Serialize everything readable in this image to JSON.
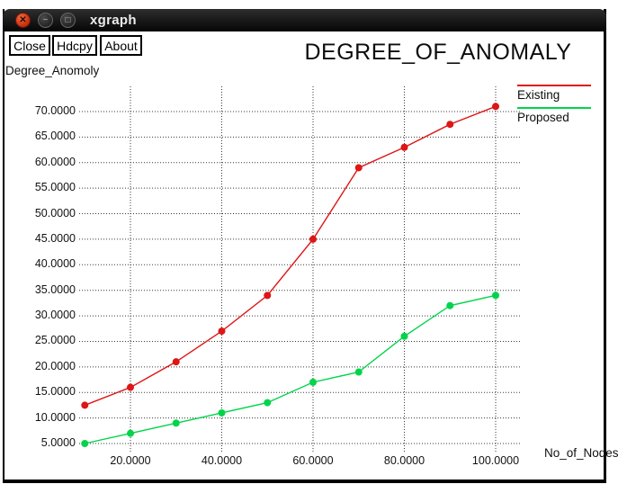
{
  "window": {
    "title": "xgraph",
    "controls": {
      "close": "close-window",
      "minimize": "minimize-window",
      "maximize": "maximize-window"
    }
  },
  "toolbar": {
    "buttons": [
      {
        "label": "Close"
      },
      {
        "label": "Hdcpy"
      },
      {
        "label": "About"
      }
    ]
  },
  "chart_data": {
    "type": "line",
    "title": "DEGREE_OF_ANOMALY",
    "xlabel": "No_of_Nodes",
    "ylabel": "Degree_Anomoly",
    "x": [
      10,
      20,
      30,
      40,
      50,
      60,
      70,
      80,
      90,
      100
    ],
    "series": [
      {
        "name": "Existing",
        "color": "#dd1616",
        "values": [
          12.5,
          16,
          21,
          27,
          34,
          45,
          59,
          63,
          67.5,
          71
        ]
      },
      {
        "name": "Proposed",
        "color": "#00d44a",
        "values": [
          5,
          7,
          9,
          11,
          13,
          17,
          19,
          26,
          32,
          34
        ]
      }
    ],
    "x_ticks": [
      20,
      40,
      60,
      80,
      100
    ],
    "x_tick_labels": [
      "20.0000",
      "40.0000",
      "60.0000",
      "80.0000",
      "100.0000"
    ],
    "y_ticks": [
      5,
      10,
      15,
      20,
      25,
      30,
      35,
      40,
      45,
      50,
      55,
      60,
      65,
      70
    ],
    "y_tick_labels": [
      "5.0000",
      "10.0000",
      "15.0000",
      "20.0000",
      "25.0000",
      "30.0000",
      "35.0000",
      "40.0000",
      "45.0000",
      "50.0000",
      "55.0000",
      "60.0000",
      "65.0000",
      "70.0000"
    ],
    "xlim": [
      8.8,
      105.3
    ],
    "ylim": [
      3.2,
      75
    ],
    "grid": "dotted",
    "grid_color": "#3a3a3a",
    "legend_position": "top-right",
    "marker": "filled-circle"
  }
}
